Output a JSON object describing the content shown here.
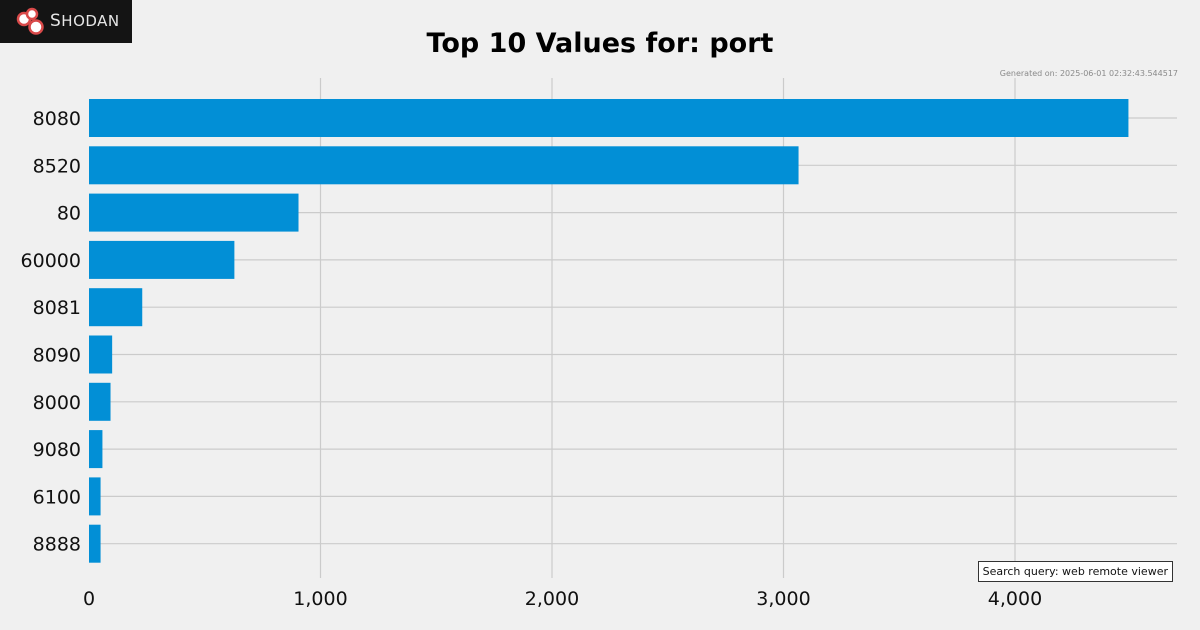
{
  "header": {
    "logo_text": "Shodan",
    "logo_icon": "shodan-logo-icon"
  },
  "title": "Top 10 Values for: port",
  "generated": "Generated on: 2025-06-01 02:32:43.544517",
  "query": "Search query: web remote viewer",
  "colors": {
    "bar": "#028fd6",
    "grid": "#cbcbcb",
    "background": "#f0f0f0"
  },
  "chart_data": {
    "type": "bar",
    "orientation": "horizontal",
    "title": "Top 10 Values for: port",
    "categories": [
      "8080",
      "8520",
      "80",
      "60000",
      "8081",
      "8090",
      "8000",
      "9080",
      "6100",
      "8888"
    ],
    "values": [
      4490,
      3065,
      905,
      628,
      230,
      100,
      93,
      58,
      50,
      50
    ],
    "xlim": [
      0,
      4700
    ],
    "xticks": [
      0,
      1000,
      2000,
      3000,
      4000
    ],
    "xtick_labels": [
      "0",
      "1,000",
      "2,000",
      "3,000",
      "4,000"
    ],
    "grid": true
  }
}
